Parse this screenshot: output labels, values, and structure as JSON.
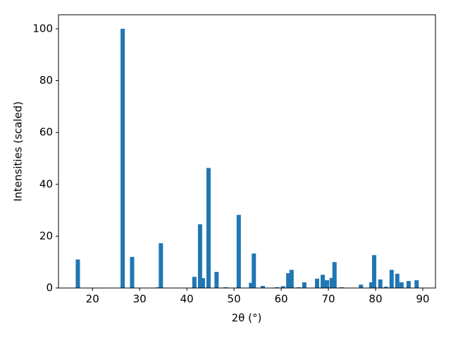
{
  "chart_data": {
    "type": "bar",
    "xlabel": "2θ (°)",
    "ylabel": "Intensities (scaled)",
    "color": "#1f77b4",
    "x": [
      16.9,
      26.4,
      28.4,
      33.9,
      34.5,
      41.6,
      42.8,
      43.4,
      44.6,
      46.3,
      48.2,
      51.0,
      53.6,
      54.2,
      56.1,
      59.1,
      60.4,
      61.5,
      62.2,
      63.7,
      64.9,
      67.6,
      68.8,
      69.7,
      70.7,
      71.3,
      72.8,
      76.9,
      79.1,
      79.7,
      81.0,
      82.2,
      83.4,
      84.6,
      85.5,
      87.0,
      88.7
    ],
    "values": [
      11,
      100,
      12,
      0.3,
      17.3,
      4.3,
      24.6,
      3.8,
      46.3,
      6.2,
      0.3,
      28.2,
      2,
      13.3,
      0.8,
      0.3,
      0.7,
      5.7,
      7,
      0.3,
      2.2,
      3.6,
      5.1,
      3,
      3.9,
      10,
      0.3,
      1.3,
      2.2,
      12.7,
      3.3,
      0.5,
      7,
      5.5,
      2.2,
      2.7,
      3
    ],
    "xlim": [
      12.8,
      92.7
    ],
    "xticks": [
      20,
      30,
      40,
      50,
      60,
      70,
      80,
      90
    ],
    "ylim": [
      0,
      105.4
    ],
    "yticks": [
      0,
      20,
      40,
      60,
      80,
      100
    ]
  }
}
